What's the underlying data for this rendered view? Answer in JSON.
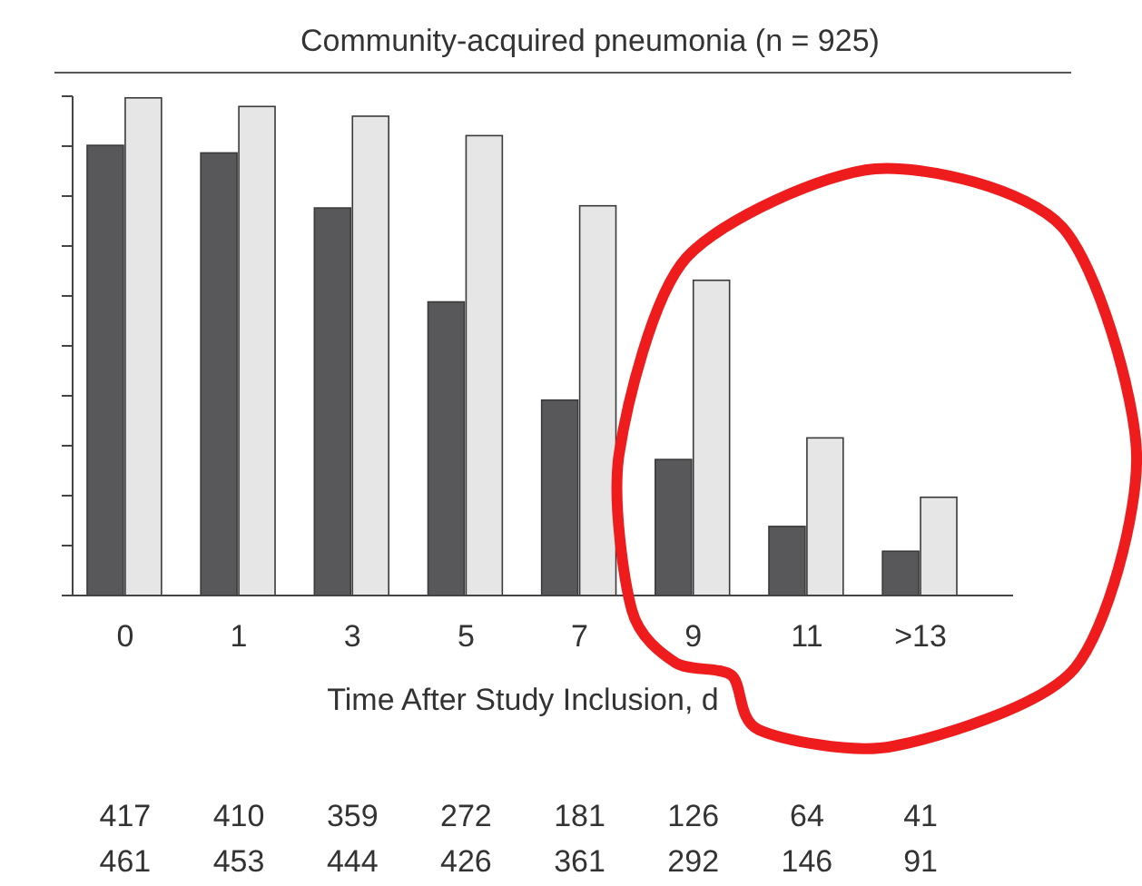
{
  "chart_data": {
    "type": "bar",
    "title": "Community-acquired pneumonia (n = 925)",
    "xlabel": "Time After Study Inclusion, d",
    "categories": [
      "0",
      "1",
      "3",
      "5",
      "7",
      "9",
      "11",
      ">13"
    ],
    "series": [
      {
        "color": "#58585a",
        "values": [
          417,
          410,
          359,
          272,
          181,
          126,
          64,
          41
        ]
      },
      {
        "color": "#e6e6e6",
        "values": [
          461,
          453,
          444,
          426,
          361,
          292,
          146,
          91
        ]
      }
    ],
    "ylim": [
      0,
      462.5
    ],
    "yticks": [
      {
        "value": 0,
        "label": null
      },
      {
        "value": 46.25,
        "label": null
      },
      {
        "value": 92.5,
        "label": null
      },
      {
        "value": 138.75,
        "label": null
      },
      {
        "value": 185,
        "label": null
      },
      {
        "value": 231.25,
        "label": null
      },
      {
        "value": 277.5,
        "label": null
      },
      {
        "value": 323.75,
        "label": null
      },
      {
        "value": 370,
        "label": null
      },
      {
        "value": 416.25,
        "label": null
      },
      {
        "value": 462.5,
        "label": null
      }
    ],
    "tick_labels": "x",
    "data_labels": true,
    "grid": false
  }
}
